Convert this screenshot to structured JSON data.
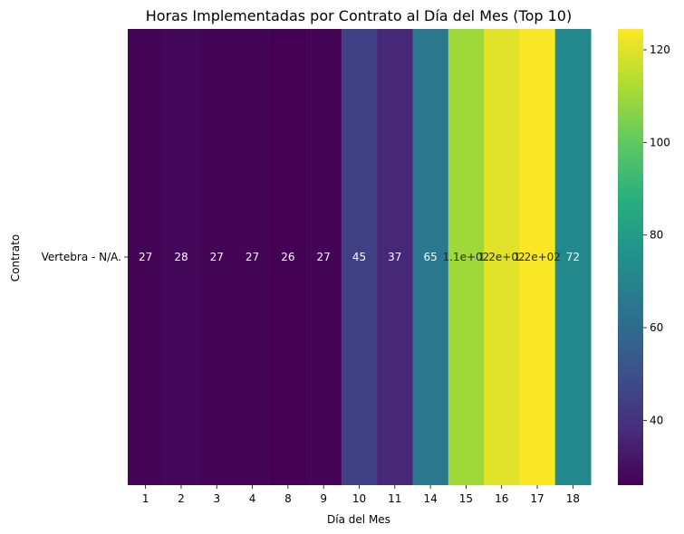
{
  "chart_data": {
    "type": "heatmap",
    "title": "Horas Implementadas por Contrato al Día del Mes (Top 10)",
    "xlabel": "Día del Mes",
    "ylabel": "Contrato",
    "rows": [
      "Vertebra - N/A."
    ],
    "columns": [
      "1",
      "2",
      "3",
      "4",
      "8",
      "9",
      "10",
      "11",
      "14",
      "15",
      "16",
      "17",
      "18"
    ],
    "values": [
      [
        27,
        28,
        27,
        27,
        26,
        27,
        45,
        37,
        65,
        110,
        120,
        124,
        72
      ]
    ],
    "cell_labels": [
      [
        "27",
        "28",
        "27",
        "27",
        "26",
        "27",
        "45",
        "37",
        "65",
        "1.1e+02",
        "1.2e+02",
        "1.2e+02",
        "72"
      ]
    ],
    "colormap": "viridis",
    "colorbar": {
      "range": [
        26,
        124.5
      ],
      "ticks": [
        40,
        60,
        80,
        100,
        120
      ]
    },
    "grid": false
  }
}
